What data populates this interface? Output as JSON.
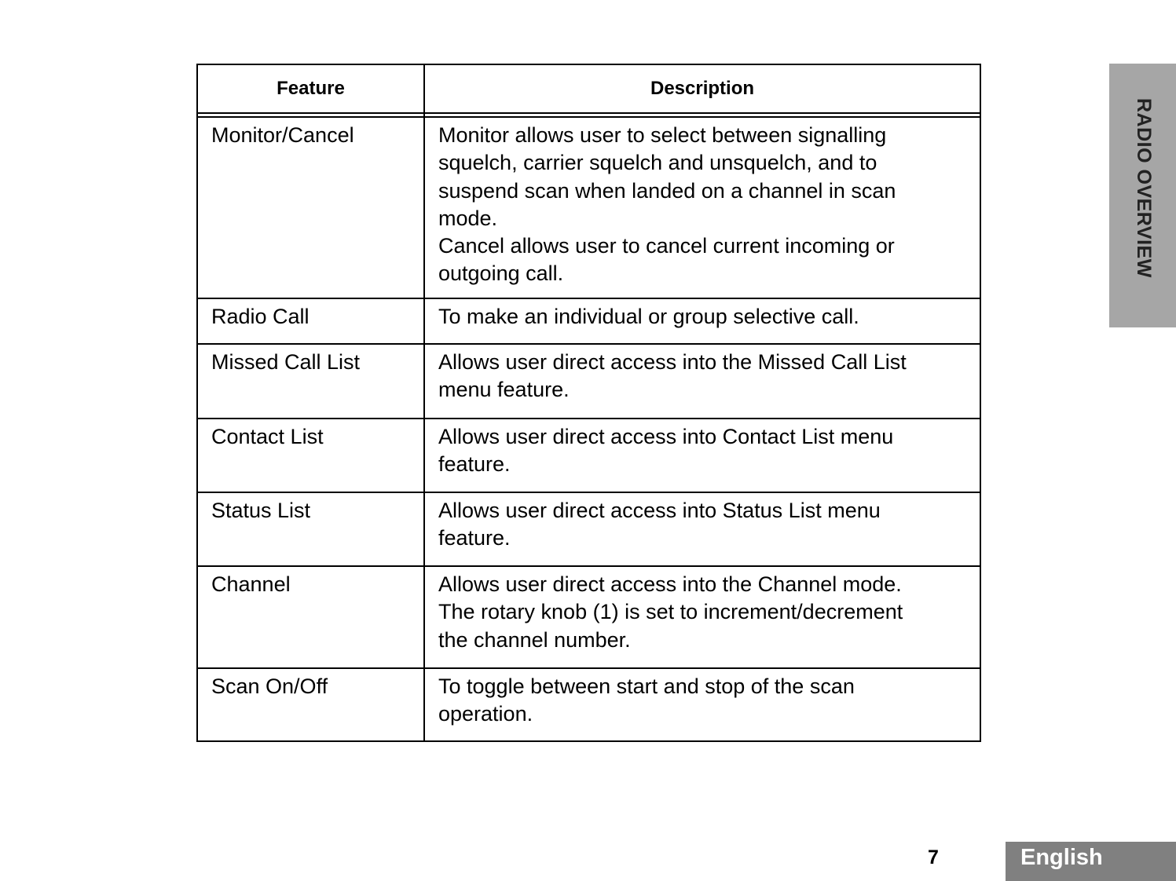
{
  "table": {
    "headers": [
      "Feature",
      "Description"
    ],
    "rows": [
      {
        "feature": "Monitor/Cancel",
        "description": [
          "Monitor allows user to select between signalling",
          "squelch, carrier squelch and unsquelch, and to",
          "suspend scan when landed on a channel in scan",
          "mode.",
          "Cancel allows user to cancel current incoming or",
          "outgoing call."
        ]
      },
      {
        "feature": "Radio Call",
        "description": [
          "To make an individual or group selective call."
        ]
      },
      {
        "feature": "Missed Call List",
        "description": [
          "Allows user direct access into the Missed Call  List",
          "menu feature."
        ]
      },
      {
        "feature": "Contact List",
        "description": [
          "Allows user direct access into Contact List menu",
          "feature."
        ]
      },
      {
        "feature": "Status List",
        "description": [
          "Allows user direct access into Status List menu",
          "feature."
        ]
      },
      {
        "feature": "Channel",
        "description": [
          "Allows user direct access into the Channel mode.",
          "The rotary knob (1) is set to increment/decrement",
          "the channel number."
        ]
      },
      {
        "feature": "Scan On/Off",
        "description": [
          "To toggle between start and stop of the scan",
          "operation."
        ]
      }
    ]
  },
  "side_tab": "RADIO OVERVIEW",
  "page_number": "7",
  "language_tab": "English"
}
